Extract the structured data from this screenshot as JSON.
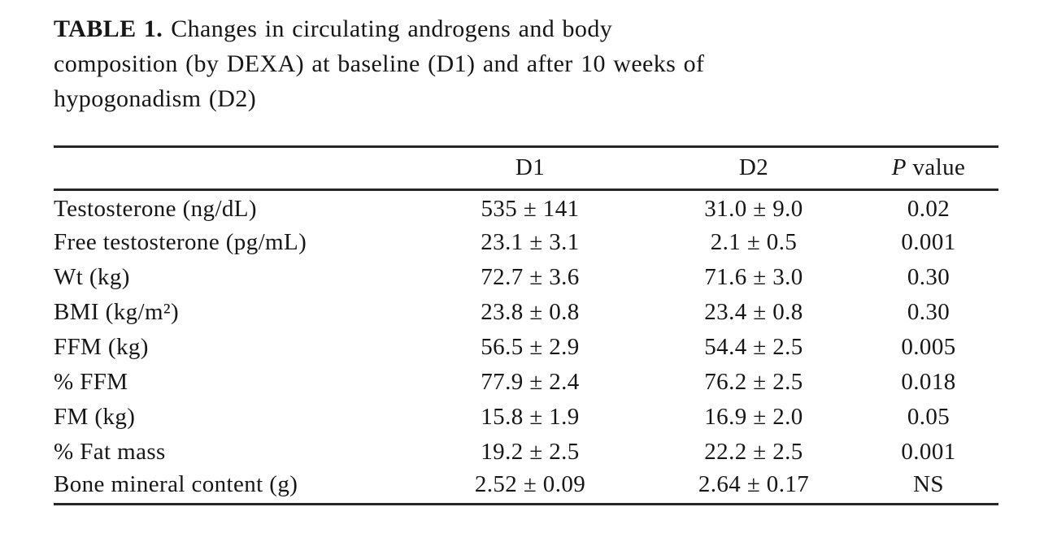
{
  "table": {
    "caption_label": "TABLE 1.",
    "caption_line1": "Changes in circulating androgens and body",
    "caption_line2": "composition (by DEXA) at baseline (D1) and after 10 weeks of",
    "caption_line3": "hypogonadism (D2)",
    "columns": {
      "label": "",
      "d1": "D1",
      "d2": "D2",
      "p_italic": "P",
      "p_rest": "value"
    },
    "rows": [
      {
        "label": "Testosterone (ng/dL)",
        "d1": "535 ± 141",
        "d2": "31.0 ± 9.0",
        "p": "0.02"
      },
      {
        "label": "Free testosterone (pg/mL)",
        "d1": "23.1 ± 3.1",
        "d2": "2.1 ± 0.5",
        "p": "0.001"
      },
      {
        "label": "Wt (kg)",
        "d1": "72.7 ± 3.6",
        "d2": "71.6 ± 3.0",
        "p": "0.30"
      },
      {
        "label": "BMI (kg/m²)",
        "d1": "23.8 ± 0.8",
        "d2": "23.4 ± 0.8",
        "p": "0.30"
      },
      {
        "label": "FFM (kg)",
        "d1": "56.5 ± 2.9",
        "d2": "54.4 ± 2.5",
        "p": "0.005"
      },
      {
        "label": "% FFM",
        "d1": "77.9 ± 2.4",
        "d2": "76.2 ± 2.5",
        "p": "0.018"
      },
      {
        "label": "FM (kg)",
        "d1": "15.8 ± 1.9",
        "d2": "16.9 ± 2.0",
        "p": "0.05"
      },
      {
        "label": "% Fat mass",
        "d1": "19.2 ± 2.5",
        "d2": "22.2 ± 2.5",
        "p": "0.001"
      },
      {
        "label": "Bone mineral content (g)",
        "d1": "2.52 ± 0.09",
        "d2": "2.64 ± 0.17",
        "p": "NS"
      }
    ]
  }
}
